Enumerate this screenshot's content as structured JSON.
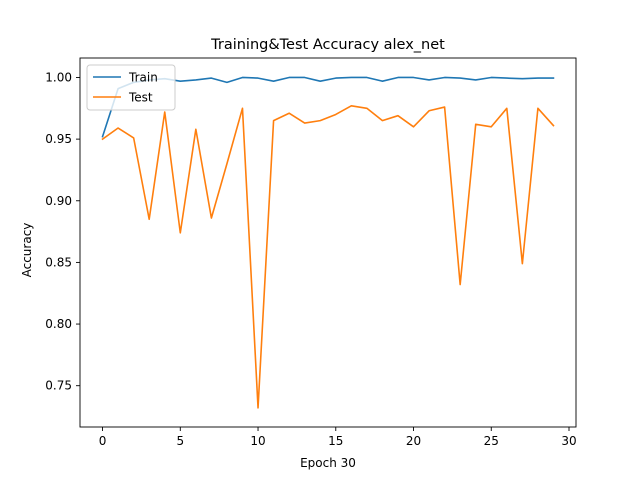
{
  "chart_data": {
    "type": "line",
    "title": "Training&Test Accuracy alex_net",
    "xlabel": "Epoch 30",
    "ylabel": "Accuracy",
    "xlim": [
      -1.45,
      30.45
    ],
    "ylim": [
      0.7165,
      1.0158
    ],
    "x_ticks": [
      0,
      5,
      10,
      15,
      20,
      25,
      30
    ],
    "y_ticks": [
      0.75,
      0.8,
      0.85,
      0.9,
      0.95,
      1.0
    ],
    "grid": false,
    "legend_position": "top-left",
    "x": [
      0,
      1,
      2,
      3,
      4,
      5,
      6,
      7,
      8,
      9,
      10,
      11,
      12,
      13,
      14,
      15,
      16,
      17,
      18,
      19,
      20,
      21,
      22,
      23,
      24,
      25,
      26,
      27,
      28,
      29
    ],
    "series": [
      {
        "name": "Train",
        "color": "#1f77b4",
        "values": [
          0.952,
          0.991,
          0.996,
          0.998,
          0.999,
          0.997,
          0.998,
          0.9995,
          0.996,
          1.0,
          0.9995,
          0.997,
          1.0,
          1.0,
          0.997,
          0.9995,
          1.0,
          1.0,
          0.997,
          1.0,
          1.0,
          0.998,
          1.0,
          0.9995,
          0.998,
          1.0,
          0.9995,
          0.999,
          0.9995,
          0.9995
        ]
      },
      {
        "name": "Test",
        "color": "#ff7f0e",
        "values": [
          0.95,
          0.959,
          0.951,
          0.885,
          0.972,
          0.874,
          0.958,
          0.886,
          0.93,
          0.975,
          0.732,
          0.965,
          0.971,
          0.963,
          0.965,
          0.97,
          0.977,
          0.975,
          0.965,
          0.969,
          0.96,
          0.973,
          0.976,
          0.832,
          0.962,
          0.96,
          0.975,
          0.849,
          0.975,
          0.961
        ]
      }
    ]
  }
}
